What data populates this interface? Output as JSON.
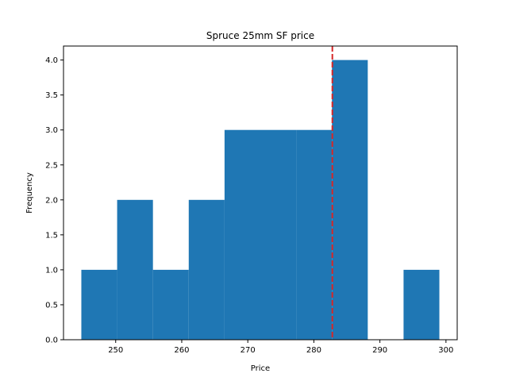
{
  "chart_data": {
    "type": "bar",
    "subtype": "histogram",
    "title": "Spruce 25mm SF price",
    "xlabel": "Price",
    "ylabel": "Frequency",
    "bin_edges": [
      244.8,
      250.22,
      255.64,
      261.06,
      266.48,
      271.9,
      277.32,
      282.74,
      288.16,
      293.58,
      299.0
    ],
    "values": [
      1,
      2,
      1,
      2,
      3,
      3,
      3,
      4,
      0,
      1
    ],
    "reference_line": {
      "x": 282.8,
      "color": "#d62728",
      "style": "dashed"
    },
    "xlim": [
      242.1,
      301.7
    ],
    "ylim": [
      0,
      4.2
    ],
    "xticks": [
      250,
      260,
      270,
      280,
      290,
      300
    ],
    "yticks": [
      0.0,
      0.5,
      1.0,
      1.5,
      2.0,
      2.5,
      3.0,
      3.5,
      4.0
    ],
    "xtick_labels": [
      "250",
      "260",
      "270",
      "280",
      "290",
      "300"
    ],
    "ytick_labels": [
      "0.0",
      "0.5",
      "1.0",
      "1.5",
      "2.0",
      "2.5",
      "3.0",
      "3.5",
      "4.0"
    ],
    "bar_color": "#1f77b4",
    "grid": false
  }
}
